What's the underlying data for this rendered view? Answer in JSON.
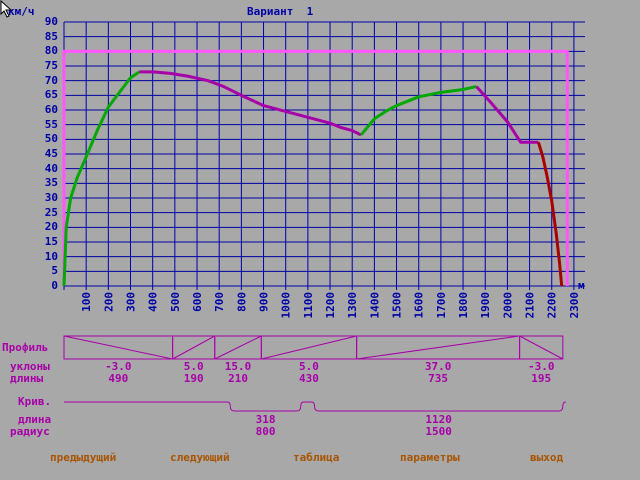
{
  "title": "Вариант  1",
  "cursor_icon": "arrow-cursor-icon",
  "chart_data": {
    "type": "line",
    "ylabel": "км/ч",
    "xlabel": "м",
    "ylim": [
      0,
      90
    ],
    "y_ticks": [
      "0",
      "5",
      "10",
      "15",
      "20",
      "25",
      "30",
      "35",
      "40",
      "45",
      "50",
      "55",
      "60",
      "65",
      "70",
      "75",
      "80",
      "85",
      "90"
    ],
    "xlim": [
      0,
      2300
    ],
    "x_ticks": [
      "100",
      "200",
      "300",
      "400",
      "500",
      "600",
      "700",
      "800",
      "900",
      "1000",
      "1100",
      "1200",
      "1300",
      "1400",
      "1500",
      "1600",
      "1700",
      "1800",
      "1900",
      "2000",
      "2100",
      "2200",
      "2300"
    ],
    "grid": true,
    "limit_line": {
      "speed": 80,
      "from": 0,
      "to": 2270,
      "color": "#ff55ff"
    },
    "series": [
      {
        "color": "#00a800",
        "x": [
          0,
          10,
          30,
          60,
          100,
          150,
          200,
          250,
          300,
          340
        ],
        "y": [
          0,
          20,
          30,
          37,
          44,
          53,
          61,
          66,
          71,
          73
        ]
      },
      {
        "color": "#a800a8",
        "x": [
          340,
          400,
          480,
          560,
          650,
          720,
          800,
          900,
          1000,
          1100,
          1200,
          1250,
          1300,
          1340
        ],
        "y": [
          73,
          73,
          72.5,
          71.5,
          70,
          68,
          65,
          61.5,
          59.5,
          57.5,
          55.5,
          54,
          53,
          51.5
        ]
      },
      {
        "color": "#00a800",
        "x": [
          1340,
          1400,
          1450,
          1500,
          1600,
          1700,
          1800,
          1860
        ],
        "y": [
          51.5,
          57,
          59.5,
          61.5,
          64.5,
          66,
          67,
          68
        ]
      },
      {
        "color": "#a800a8",
        "x": [
          1860,
          1920,
          2000,
          2060,
          2090,
          2140
        ],
        "y": [
          68,
          63,
          56,
          49,
          49,
          49
        ]
      },
      {
        "color": "#a80000",
        "x": [
          2140,
          2160,
          2180,
          2200,
          2220,
          2235,
          2245
        ],
        "y": [
          49,
          44,
          37,
          29,
          18,
          8,
          0
        ]
      }
    ]
  },
  "profile": {
    "label": "Профиль",
    "slopes_label": "уклоны",
    "lengths_label": "длины",
    "segments": [
      {
        "slope": "-3.0",
        "length": "490",
        "start": 0,
        "end": 490,
        "dir": "down"
      },
      {
        "slope": "5.0",
        "length": "190",
        "start": 490,
        "end": 680,
        "dir": "up"
      },
      {
        "slope": "15.0",
        "length": "210",
        "start": 680,
        "end": 890,
        "dir": "up"
      },
      {
        "slope": "5.0",
        "length": "430",
        "start": 890,
        "end": 1320,
        "dir": "up"
      },
      {
        "slope": "37.0",
        "length": "735",
        "start": 1320,
        "end": 2055,
        "dir": "up"
      },
      {
        "slope": "-3.0",
        "length": "195",
        "start": 2055,
        "end": 2250,
        "dir": "down"
      }
    ]
  },
  "curves": {
    "label": "Крив.",
    "length_label": "длина",
    "radius_label": "радиус",
    "items": [
      {
        "length": "318",
        "radius": "800",
        "start": 750,
        "end": 1068
      },
      {
        "length": "1120",
        "radius": "1500",
        "start": 1130,
        "end": 2250
      }
    ]
  },
  "menu": {
    "prev": "предыдущий",
    "next": "следующий",
    "table": "таблица",
    "params": "параметры",
    "exit": "выход"
  }
}
